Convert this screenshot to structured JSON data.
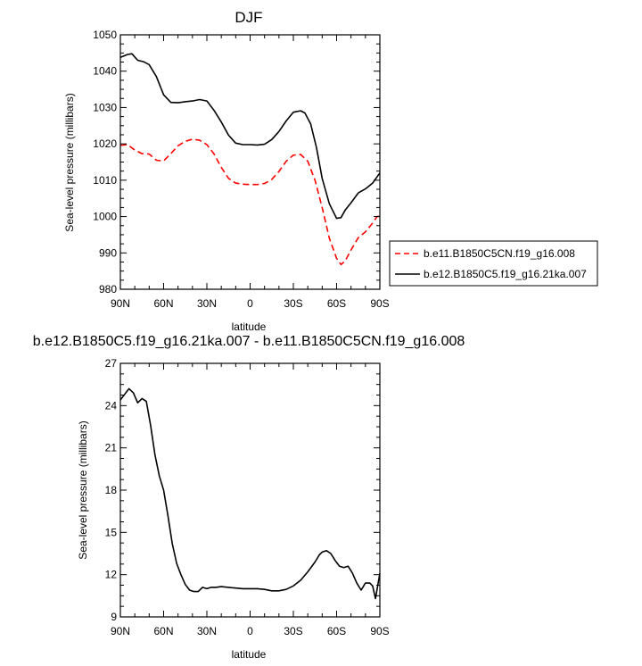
{
  "chart_data": [
    {
      "type": "line",
      "title": "DJF",
      "xlabel": "latitude",
      "ylabel": "Sea-level pressure (millibars)",
      "xlim": [
        90,
        -90
      ],
      "ylim": [
        980,
        1050
      ],
      "x_ticks": [
        90,
        60,
        30,
        0,
        -30,
        -60,
        -90
      ],
      "x_tick_labels": [
        "90N",
        "60N",
        "30N",
        "0",
        "30S",
        "60S",
        "90S"
      ],
      "y_ticks": [
        980,
        990,
        1000,
        1010,
        1020,
        1030,
        1040,
        1050
      ],
      "y_tick_labels": [
        "980",
        "990",
        "1000",
        "1010",
        "1020",
        "1030",
        "1040",
        "1050"
      ],
      "grid": false,
      "legend_position": "outside-right",
      "series": [
        {
          "name": "b.e11.B1850C5CN.f19_g16.008",
          "color": "#ff0000",
          "dash": "dashed",
          "x": [
            90,
            85,
            80,
            75,
            70,
            65,
            60,
            55,
            50,
            45,
            40,
            35,
            30,
            25,
            20,
            15,
            10,
            5,
            0,
            -5,
            -10,
            -15,
            -20,
            -25,
            -30,
            -35,
            -40,
            -45,
            -50,
            -55,
            -60,
            -63,
            -66,
            -70,
            -75,
            -80,
            -85,
            -88,
            -90
          ],
          "values": [
            1019.6,
            1019.8,
            1018.3,
            1017.3,
            1017.2,
            1015.5,
            1015.3,
            1017.3,
            1019.5,
            1020.7,
            1021.3,
            1021,
            1019.8,
            1017.2,
            1013.5,
            1010.5,
            1009.2,
            1008.9,
            1008.8,
            1008.8,
            1009.1,
            1010.2,
            1012.4,
            1015.2,
            1016.9,
            1017.1,
            1015.2,
            1010,
            1002.5,
            994,
            988.5,
            986.8,
            987.8,
            990.8,
            994.2,
            995.8,
            998.2,
            1000,
            1000.1
          ]
        },
        {
          "name": "b.e12.B1850C5.f19_g16.21ka.007",
          "color": "#000000",
          "dash": "solid",
          "x": [
            90,
            85,
            82,
            78,
            74,
            70,
            65,
            60,
            55,
            50,
            45,
            40,
            35,
            30,
            25,
            20,
            15,
            10,
            5,
            0,
            -5,
            -10,
            -15,
            -20,
            -25,
            -30,
            -35,
            -38,
            -42,
            -46,
            -50,
            -55,
            -60,
            -63,
            -66,
            -70,
            -75,
            -80,
            -85,
            -90
          ],
          "values": [
            1043.8,
            1044.6,
            1044.8,
            1043,
            1042.6,
            1041.8,
            1038.5,
            1033.5,
            1031.4,
            1031.3,
            1031.6,
            1031.8,
            1032.2,
            1031.8,
            1029.2,
            1026,
            1022.4,
            1020.2,
            1019.8,
            1019.8,
            1019.7,
            1019.9,
            1021.2,
            1023.4,
            1026.3,
            1028.7,
            1029.1,
            1028.5,
            1025.5,
            1019,
            1010.5,
            1003.5,
            999.5,
            999.7,
            1001.8,
            1003.8,
            1006.5,
            1007.6,
            1009.2,
            1012
          ]
        }
      ]
    },
    {
      "type": "line",
      "title": "b.e12.B1850C5.f19_g16.21ka.007 - b.e11.B1850C5CN.f19_g16.008",
      "xlabel": "latitude",
      "ylabel": "Sea-level pressure (millibars)",
      "xlim": [
        90,
        -90
      ],
      "ylim": [
        9,
        27
      ],
      "x_ticks": [
        90,
        60,
        30,
        0,
        -30,
        -60,
        -90
      ],
      "x_tick_labels": [
        "90N",
        "60N",
        "30N",
        "0",
        "30S",
        "60S",
        "90S"
      ],
      "y_ticks": [
        9,
        12,
        15,
        18,
        21,
        24,
        27
      ],
      "y_tick_labels": [
        "9",
        "12",
        "15",
        "18",
        "21",
        "24",
        "27"
      ],
      "grid": false,
      "series": [
        {
          "color": "#000000",
          "dash": "solid",
          "x": [
            90,
            87,
            84,
            81,
            78,
            75,
            72,
            69,
            66,
            63,
            60,
            57,
            54,
            51,
            48,
            45,
            42,
            39,
            36,
            33,
            30,
            27,
            24,
            20,
            15,
            10,
            5,
            0,
            -5,
            -10,
            -15,
            -20,
            -25,
            -30,
            -35,
            -40,
            -45,
            -48,
            -50,
            -53,
            -56,
            -59,
            -62,
            -65,
            -68,
            -71,
            -74,
            -77,
            -80,
            -83,
            -85,
            -87,
            -90
          ],
          "values": [
            24.4,
            24.8,
            25.2,
            24.9,
            24.2,
            24.5,
            24.3,
            22.6,
            20.5,
            19,
            18,
            16.2,
            14.2,
            12.8,
            12,
            11.3,
            10.9,
            10.8,
            10.8,
            11.1,
            11,
            11.1,
            11.1,
            11.15,
            11.1,
            11.05,
            11,
            11,
            11,
            10.95,
            10.85,
            10.85,
            10.95,
            11.2,
            11.6,
            12.2,
            12.9,
            13.4,
            13.6,
            13.7,
            13.5,
            13,
            12.6,
            12.5,
            12.6,
            12.1,
            11.4,
            10.9,
            11.4,
            11.4,
            11.2,
            10.3,
            12.1
          ]
        }
      ]
    }
  ]
}
